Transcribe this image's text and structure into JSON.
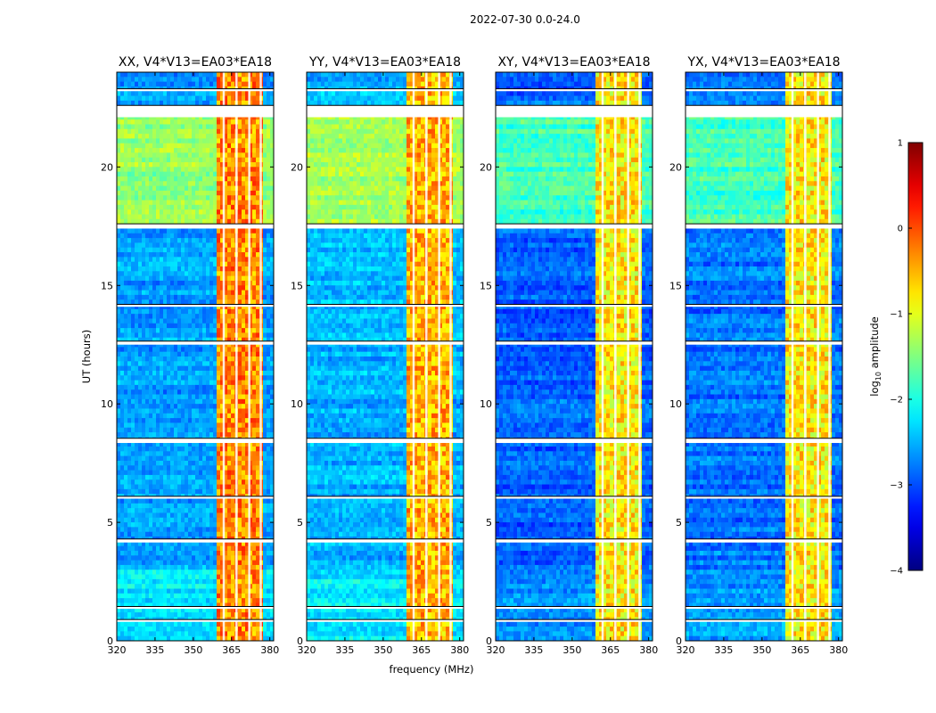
{
  "figure": {
    "suptitle": "2022-07-30 0.0-24.0",
    "xlabel": "frequency (MHz)",
    "ylabel": "UT (hours)"
  },
  "colorbar": {
    "label": "log10 amplitude",
    "label_base": "log",
    "label_sub": "10",
    "label_rest": " amplitude",
    "range": [
      -4,
      1
    ],
    "ticks": [
      "1",
      "0",
      "−1",
      "−2",
      "−3",
      "−4"
    ],
    "tick_values": [
      1,
      0,
      -1,
      -2,
      -3,
      -4
    ],
    "colormap": "jet"
  },
  "chart_data": [
    {
      "type": "heatmap",
      "title": "XX, V4*V13=EA03*EA18",
      "xlim": [
        320,
        381.5
      ],
      "ylim": [
        0,
        24
      ],
      "xticks": [
        320,
        335,
        350,
        365,
        380
      ],
      "xtick_labels": [
        "320",
        "335",
        "350",
        "365",
        "380"
      ],
      "yticks": [
        0,
        5,
        10,
        15,
        20
      ],
      "ytick_labels": [
        "0",
        "5",
        "10",
        "15",
        "20"
      ],
      "z": "log10 amplitude",
      "rfi_band_mhz": [
        359.5,
        377
      ],
      "rfi_level": 0.0,
      "background_level_by_ut": [
        {
          "ut": [
            0.0,
            3.1
          ],
          "level": -2.2
        },
        {
          "ut": [
            3.1,
            17.4
          ],
          "level": -2.6
        },
        {
          "ut": [
            17.6,
            22.1
          ],
          "level": -1.4
        },
        {
          "ut": [
            22.6,
            24.0
          ],
          "level": -2.6
        }
      ]
    },
    {
      "type": "heatmap",
      "title": "YY, V4*V13=EA03*EA18",
      "xlim": [
        320,
        381.5
      ],
      "ylim": [
        0,
        24
      ],
      "xticks": [
        320,
        335,
        350,
        365,
        380
      ],
      "xtick_labels": [
        "320",
        "335",
        "350",
        "365",
        "380"
      ],
      "yticks": [
        0,
        5,
        10,
        15,
        20
      ],
      "ytick_labels": [
        "0",
        "5",
        "10",
        "15",
        "20"
      ],
      "z": "log10 amplitude",
      "rfi_band_mhz": [
        359.5,
        377
      ],
      "rfi_level": -0.2,
      "background_level_by_ut": [
        {
          "ut": [
            0.0,
            3.1
          ],
          "level": -2.2
        },
        {
          "ut": [
            3.1,
            17.4
          ],
          "level": -2.5
        },
        {
          "ut": [
            17.6,
            22.1
          ],
          "level": -1.3
        },
        {
          "ut": [
            22.6,
            24.0
          ],
          "level": -2.5
        }
      ]
    },
    {
      "type": "heatmap",
      "title": "XY, V4*V13=EA03*EA18",
      "xlim": [
        320,
        381.5
      ],
      "ylim": [
        0,
        24
      ],
      "xticks": [
        320,
        335,
        350,
        365,
        380
      ],
      "xtick_labels": [
        "320",
        "335",
        "350",
        "365",
        "380"
      ],
      "yticks": [
        0,
        5,
        10,
        15,
        20
      ],
      "ytick_labels": [
        "0",
        "5",
        "10",
        "15",
        "20"
      ],
      "z": "log10 amplitude",
      "rfi_band_mhz": [
        359.5,
        377
      ],
      "rfi_level": -0.5,
      "background_level_by_ut": [
        {
          "ut": [
            0.0,
            3.1
          ],
          "level": -2.6
        },
        {
          "ut": [
            3.1,
            17.4
          ],
          "level": -2.9
        },
        {
          "ut": [
            17.6,
            22.1
          ],
          "level": -1.8
        },
        {
          "ut": [
            22.6,
            24.0
          ],
          "level": -2.9
        }
      ]
    },
    {
      "type": "heatmap",
      "title": "YX, V4*V13=EA03*EA18",
      "xlim": [
        320,
        381.5
      ],
      "ylim": [
        0,
        24
      ],
      "xticks": [
        320,
        335,
        350,
        365,
        380
      ],
      "xtick_labels": [
        "320",
        "335",
        "350",
        "365",
        "380"
      ],
      "yticks": [
        0,
        5,
        10,
        15,
        20
      ],
      "ytick_labels": [
        "0",
        "5",
        "10",
        "15",
        "20"
      ],
      "z": "log10 amplitude",
      "rfi_band_mhz": [
        359.5,
        377
      ],
      "rfi_level": -0.5,
      "background_level_by_ut": [
        {
          "ut": [
            0.0,
            3.1
          ],
          "level": -2.6
        },
        {
          "ut": [
            3.1,
            17.4
          ],
          "level": -2.8
        },
        {
          "ut": [
            17.6,
            22.1
          ],
          "level": -1.8
        },
        {
          "ut": [
            22.6,
            24.0
          ],
          "level": -2.8
        }
      ]
    }
  ]
}
